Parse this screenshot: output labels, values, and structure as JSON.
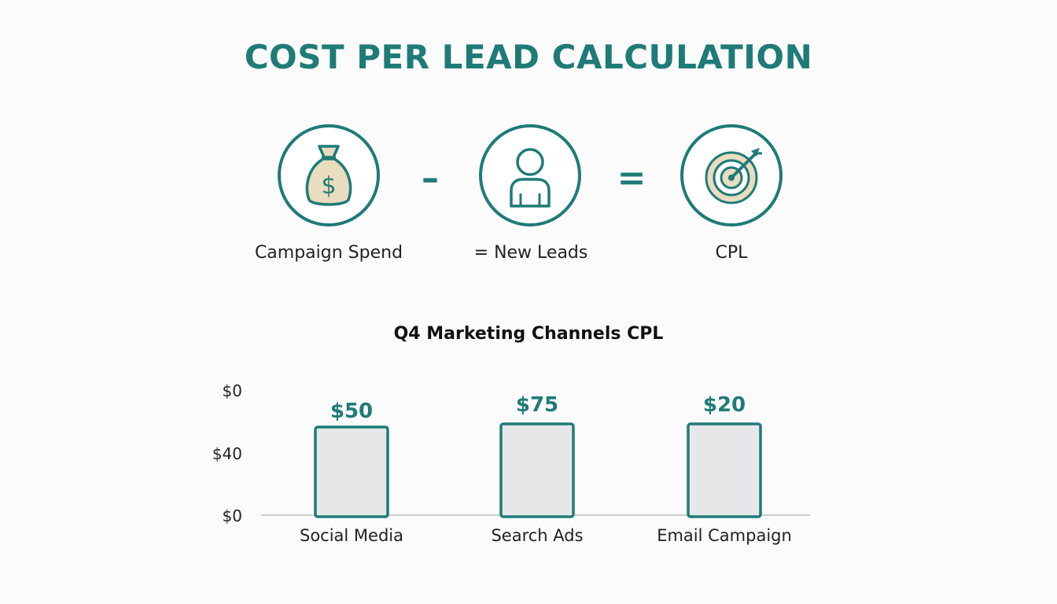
{
  "title": "COST PER LEAD CALCULATION",
  "formula": {
    "steps": [
      {
        "label": "Campaign Spend",
        "icon": "money-bag-icon"
      },
      {
        "label": "= New Leads",
        "icon": "person-icon"
      },
      {
        "label": "CPL",
        "icon": "target-icon"
      }
    ],
    "operators": [
      "–",
      "="
    ]
  },
  "colors": {
    "accent": "#1e7b78",
    "bar_fill": "#e6e7e8",
    "icon_fill": "#e9dcbf",
    "axis": "#bdbdbd",
    "text": "#222222"
  },
  "chart_data": {
    "type": "bar",
    "title": "Q4 Marketing Channels CPL",
    "categories": [
      "Social Media",
      "Search Ads",
      "Email Campaign"
    ],
    "values": [
      50,
      75,
      20
    ],
    "value_labels": [
      "$50",
      "$75",
      "$20"
    ],
    "y_tick_labels": [
      "$0",
      "$40",
      "$0"
    ],
    "grid": false,
    "legend": "none"
  }
}
